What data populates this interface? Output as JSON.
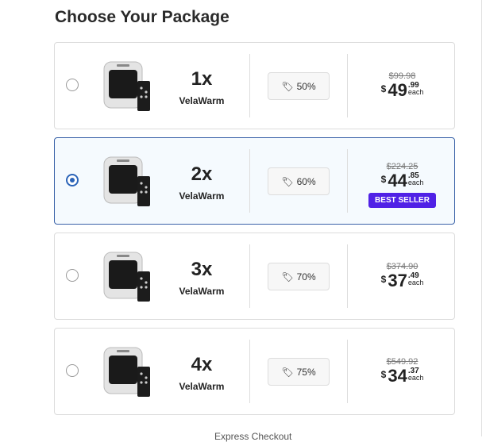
{
  "title": "Choose Your Package",
  "packages": [
    {
      "qty": "1x",
      "name": "VelaWarm",
      "discount": "50%",
      "old_price": "$99.98",
      "currency": "$",
      "price_whole": "49",
      "price_cents": ".99",
      "unit": "each",
      "selected": false
    },
    {
      "qty": "2x",
      "name": "VelaWarm",
      "discount": "60%",
      "old_price": "$224.25",
      "currency": "$",
      "price_whole": "44",
      "price_cents": ".85",
      "unit": "each",
      "badge": "BEST SELLER",
      "selected": true
    },
    {
      "qty": "3x",
      "name": "VelaWarm",
      "discount": "70%",
      "old_price": "$374.90",
      "currency": "$",
      "price_whole": "37",
      "price_cents": ".49",
      "unit": "each",
      "selected": false
    },
    {
      "qty": "4x",
      "name": "VelaWarm",
      "discount": "75%",
      "old_price": "$549.92",
      "currency": "$",
      "price_whole": "34",
      "price_cents": ".37",
      "unit": "each",
      "selected": false
    }
  ],
  "express": "Express Checkout",
  "colors": {
    "accent": "#2b64b8",
    "badge": "#5021e6"
  },
  "icons": {
    "discount": "tag-icon"
  }
}
